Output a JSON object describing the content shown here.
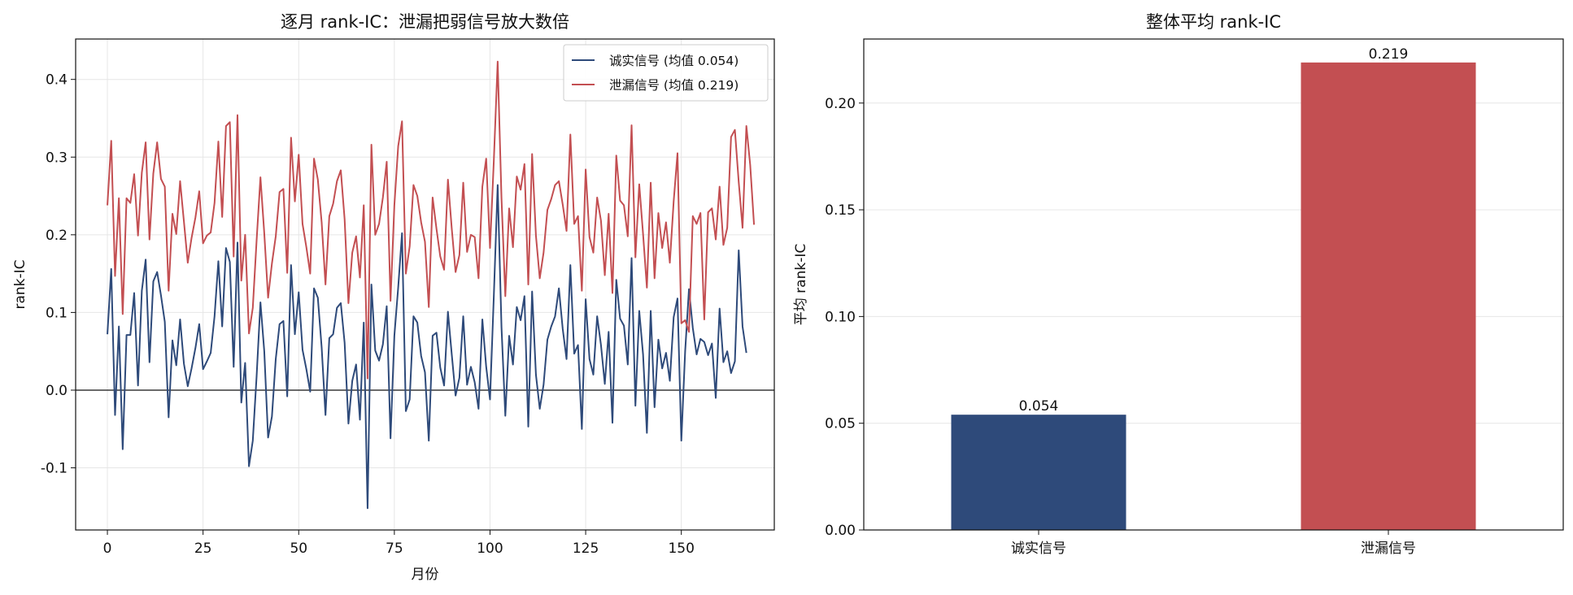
{
  "chart_data": [
    {
      "type": "line",
      "title": "逐月 rank-IC：泄漏把弱信号放大数倍",
      "xlabel": "月份",
      "ylabel": "rank-IC",
      "xlim": [
        -8.3,
        174.3
      ],
      "ylim": [
        -0.18,
        0.452
      ],
      "xticks": [
        0,
        25,
        50,
        75,
        100,
        125,
        150
      ],
      "yticks": [
        -0.1,
        0.0,
        0.1,
        0.2,
        0.3,
        0.4
      ],
      "ytick_labels": [
        "-0.1",
        "0.0",
        "0.1",
        "0.2",
        "0.3",
        "0.4"
      ],
      "grid": true,
      "zero_line": true,
      "legend_position": "top-right",
      "series": [
        {
          "name": "诚实信号 (均值 0.054)",
          "color": "#2e4a7a",
          "values": [
            0.072,
            0.156,
            -0.032,
            0.082,
            -0.076,
            0.071,
            0.071,
            0.125,
            0.006,
            0.128,
            0.168,
            0.036,
            0.14,
            0.152,
            0.122,
            0.088,
            -0.035,
            0.064,
            0.032,
            0.091,
            0.034,
            0.005,
            0.028,
            0.054,
            0.085,
            0.027,
            0.037,
            0.048,
            0.095,
            0.166,
            0.082,
            0.183,
            0.165,
            0.03,
            0.19,
            -0.016,
            0.035,
            -0.098,
            -0.065,
            0.018,
            0.113,
            0.05,
            -0.061,
            -0.034,
            0.04,
            0.085,
            0.089,
            -0.008,
            0.161,
            0.072,
            0.126,
            0.052,
            0.027,
            -0.002,
            0.131,
            0.119,
            0.055,
            -0.032,
            0.067,
            0.072,
            0.106,
            0.112,
            0.061,
            -0.043,
            0.012,
            0.033,
            -0.038,
            0.087,
            -0.152,
            0.136,
            0.051,
            0.038,
            0.059,
            0.108,
            -0.062,
            0.07,
            0.132,
            0.202,
            -0.027,
            -0.012,
            0.095,
            0.087,
            0.044,
            0.023,
            -0.065,
            0.07,
            0.074,
            0.029,
            0.006,
            0.101,
            0.046,
            -0.007,
            0.016,
            0.095,
            0.007,
            0.03,
            0.01,
            -0.024,
            0.091,
            0.03,
            -0.012,
            0.122,
            0.264,
            0.081,
            -0.033,
            0.07,
            0.033,
            0.107,
            0.09,
            0.121,
            -0.047,
            0.127,
            0.02,
            -0.024,
            0.007,
            0.065,
            0.082,
            0.095,
            0.131,
            0.079,
            0.04,
            0.161,
            0.047,
            0.058,
            -0.05,
            0.117,
            0.04,
            0.02,
            0.095,
            0.058,
            0.008,
            0.075,
            -0.042,
            0.142,
            0.092,
            0.083,
            0.033,
            0.17,
            -0.02,
            0.102,
            0.046,
            -0.055,
            0.102,
            -0.022,
            0.065,
            0.028,
            0.048,
            0.012,
            0.094,
            0.118,
            -0.065,
            0.05,
            0.13,
            0.08,
            0.046,
            0.066,
            0.062,
            0.045,
            0.06,
            -0.01,
            0.105,
            0.036,
            0.05,
            0.022,
            0.037,
            0.18,
            0.082,
            0.048
          ]
        },
        {
          "name": "泄漏信号 (均值 0.219)",
          "color": "#c34f52",
          "values": [
            0.238,
            0.321,
            0.147,
            0.247,
            0.098,
            0.247,
            0.241,
            0.278,
            0.199,
            0.28,
            0.319,
            0.194,
            0.279,
            0.319,
            0.272,
            0.262,
            0.128,
            0.227,
            0.201,
            0.269,
            0.217,
            0.164,
            0.196,
            0.222,
            0.256,
            0.189,
            0.199,
            0.203,
            0.241,
            0.32,
            0.223,
            0.34,
            0.345,
            0.172,
            0.354,
            0.141,
            0.2,
            0.073,
            0.106,
            0.193,
            0.274,
            0.202,
            0.119,
            0.163,
            0.198,
            0.255,
            0.259,
            0.151,
            0.325,
            0.243,
            0.303,
            0.214,
            0.184,
            0.15,
            0.298,
            0.271,
            0.216,
            0.136,
            0.224,
            0.24,
            0.269,
            0.283,
            0.22,
            0.112,
            0.177,
            0.198,
            0.145,
            0.238,
            0.015,
            0.316,
            0.2,
            0.214,
            0.248,
            0.294,
            0.115,
            0.238,
            0.314,
            0.346,
            0.15,
            0.185,
            0.264,
            0.25,
            0.216,
            0.191,
            0.107,
            0.248,
            0.208,
            0.172,
            0.155,
            0.271,
            0.208,
            0.152,
            0.174,
            0.267,
            0.178,
            0.2,
            0.197,
            0.144,
            0.262,
            0.298,
            0.183,
            0.296,
            0.423,
            0.247,
            0.121,
            0.234,
            0.184,
            0.275,
            0.258,
            0.291,
            0.136,
            0.304,
            0.199,
            0.144,
            0.177,
            0.232,
            0.246,
            0.264,
            0.269,
            0.239,
            0.205,
            0.329,
            0.214,
            0.224,
            0.128,
            0.284,
            0.197,
            0.177,
            0.248,
            0.218,
            0.148,
            0.227,
            0.125,
            0.302,
            0.244,
            0.238,
            0.198,
            0.341,
            0.171,
            0.265,
            0.201,
            0.132,
            0.267,
            0.144,
            0.228,
            0.183,
            0.216,
            0.164,
            0.243,
            0.305,
            0.086,
            0.09,
            0.075,
            0.224,
            0.214,
            0.228,
            0.091,
            0.229,
            0.234,
            0.194,
            0.262,
            0.187,
            0.209,
            0.326,
            0.335,
            0.268,
            0.209,
            0.34,
            0.29,
            0.213
          ]
        }
      ]
    },
    {
      "type": "bar",
      "title": "整体平均 rank-IC",
      "ylabel": "平均 rank-IC",
      "categories": [
        "诚实信号",
        "泄漏信号"
      ],
      "values": [
        0.054,
        0.219
      ],
      "value_labels": [
        "0.054",
        "0.219"
      ],
      "colors": [
        "#2e4a7a",
        "#c34f52"
      ],
      "ylim": [
        0,
        0.23
      ],
      "yticks": [
        0.0,
        0.05,
        0.1,
        0.15,
        0.2
      ],
      "ytick_labels": [
        "0.00",
        "0.05",
        "0.10",
        "0.15",
        "0.20"
      ],
      "grid": true
    }
  ]
}
